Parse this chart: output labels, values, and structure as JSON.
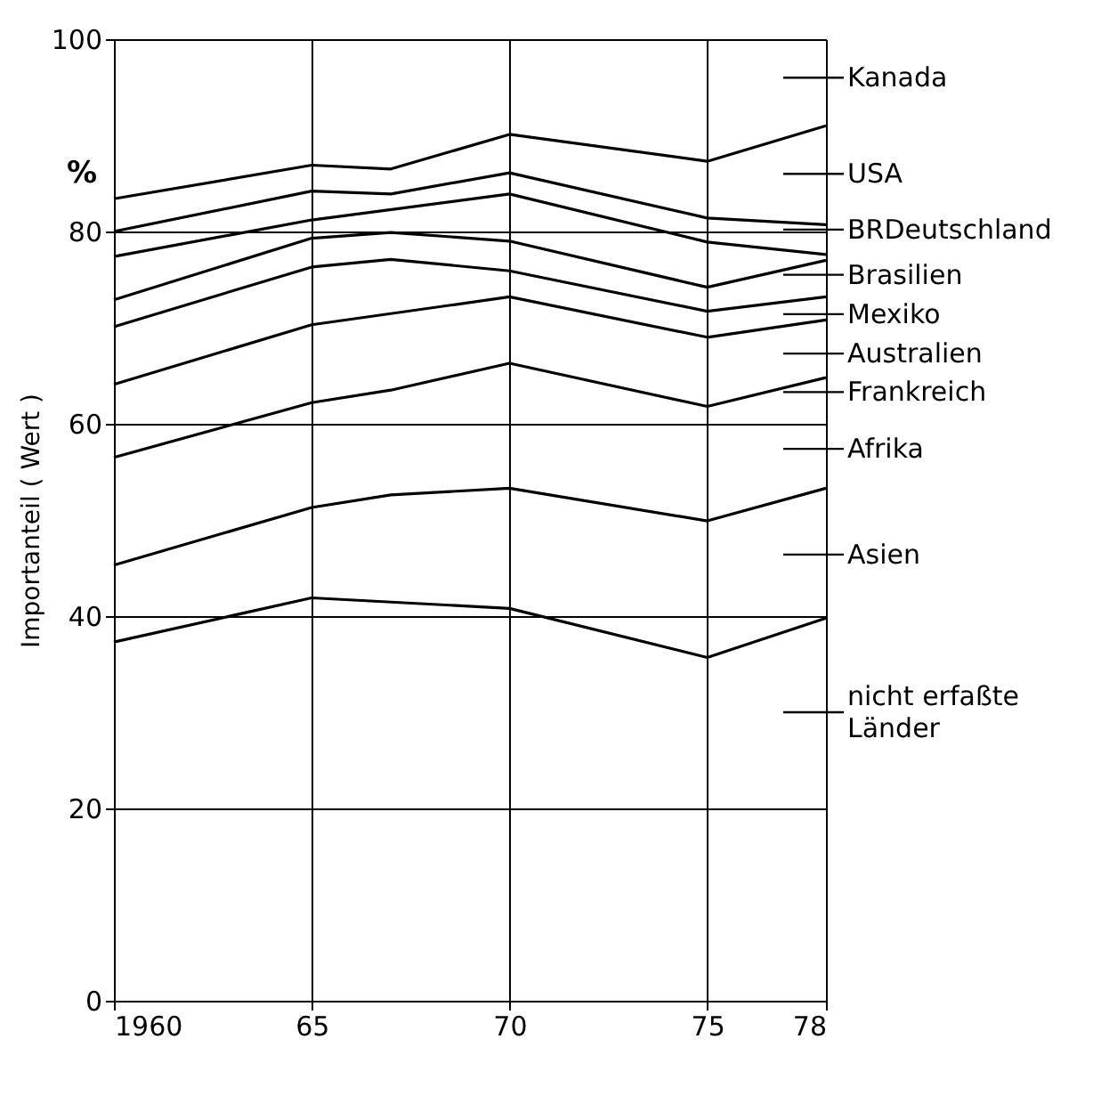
{
  "chart_data": {
    "type": "line",
    "ylabel": "Importanteil ( Wert )",
    "xlim": [
      1960,
      1978
    ],
    "xticks": [
      {
        "value": 1960,
        "label": "1960"
      },
      {
        "value": 1965,
        "label": "65"
      },
      {
        "value": 1970,
        "label": "70"
      },
      {
        "value": 1975,
        "label": "75"
      },
      {
        "value": 1978,
        "label": "78"
      }
    ],
    "ylim": [
      0,
      100
    ],
    "yticks": [
      0,
      20,
      40,
      60,
      80,
      100
    ],
    "grid": true,
    "legend": false,
    "marker": "none",
    "line_style": "solid",
    "series": [
      {
        "color": "#000000",
        "x": [
          1960,
          1965,
          1967,
          1970,
          1975,
          1978
        ],
        "values": [
          83.4,
          86.9,
          86.5,
          90.1,
          87.3,
          91.0
        ]
      },
      {
        "color": "#000000",
        "x": [
          1960,
          1965,
          1967,
          1970,
          1975,
          1978
        ],
        "values": [
          80.0,
          84.2,
          83.9,
          86.1,
          81.4,
          80.7
        ]
      },
      {
        "color": "#000000",
        "x": [
          1960,
          1965,
          1970,
          1975,
          1978
        ],
        "values": [
          77.4,
          81.2,
          83.9,
          78.9,
          77.6
        ]
      },
      {
        "color": "#000000",
        "x": [
          1960,
          1965,
          1967,
          1970,
          1975,
          1978
        ],
        "values": [
          72.9,
          79.3,
          79.9,
          79.0,
          74.2,
          77.0
        ]
      },
      {
        "color": "#000000",
        "x": [
          1960,
          1965,
          1967,
          1970,
          1975,
          1978
        ],
        "values": [
          70.1,
          76.3,
          77.1,
          75.9,
          71.7,
          73.2
        ]
      },
      {
        "color": "#000000",
        "x": [
          1960,
          1965,
          1970,
          1975,
          1978
        ],
        "values": [
          64.1,
          70.3,
          73.2,
          69.0,
          70.8
        ]
      },
      {
        "color": "#000000",
        "x": [
          1960,
          1965,
          1967,
          1970,
          1975,
          1978
        ],
        "values": [
          56.5,
          62.2,
          63.5,
          66.3,
          61.8,
          64.8
        ]
      },
      {
        "color": "#000000",
        "x": [
          1960,
          1965,
          1967,
          1970,
          1975,
          1978
        ],
        "values": [
          45.3,
          51.3,
          52.6,
          53.3,
          49.9,
          53.3
        ]
      },
      {
        "color": "#000000",
        "x": [
          1960,
          1965,
          1970,
          1975,
          1978
        ],
        "values": [
          37.3,
          41.9,
          40.8,
          35.7,
          39.8
        ]
      }
    ],
    "annotations": [
      "%",
      "Kanada",
      "USA",
      "BRDeutschland",
      "Brasilien",
      "Mexiko",
      "Australien",
      "Frankreich",
      "Afrika",
      "Asien",
      "nicht erfaßte Länder"
    ]
  }
}
